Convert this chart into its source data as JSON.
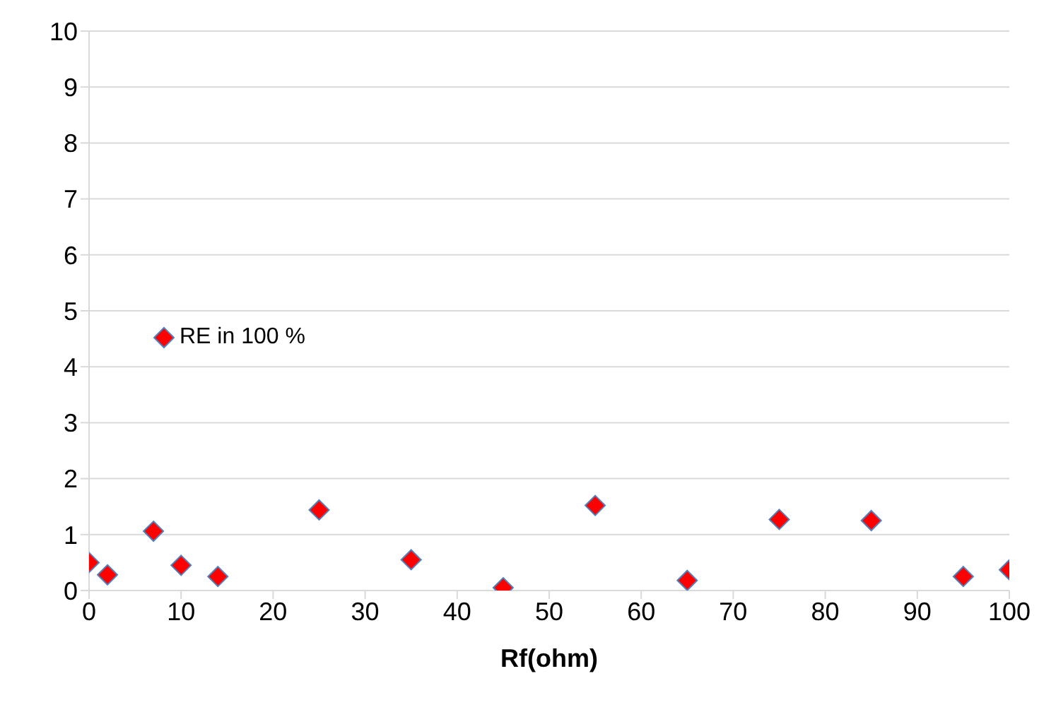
{
  "chart_data": {
    "type": "scatter",
    "xlabel": "Rf(ohm)",
    "series": [
      {
        "name": "RE in 100 %",
        "color": "#ff0000",
        "x": [
          0,
          2,
          7,
          10,
          14,
          25,
          35,
          45,
          55,
          65,
          75,
          85,
          95,
          100
        ],
        "values": [
          0.5,
          0.28,
          1.06,
          0.45,
          0.25,
          1.44,
          0.55,
          0.05,
          1.52,
          0.18,
          1.27,
          1.25,
          0.25,
          0.37
        ]
      }
    ],
    "xlim": [
      0,
      100
    ],
    "xticks": [
      0,
      10,
      20,
      30,
      40,
      50,
      60,
      70,
      80,
      90,
      100
    ],
    "ylim": [
      0,
      10
    ],
    "yticks": [
      0,
      1,
      2,
      3,
      4,
      5,
      6,
      7,
      8,
      9,
      10
    ],
    "grid": "y",
    "legend": "left",
    "marker": "diamond"
  }
}
